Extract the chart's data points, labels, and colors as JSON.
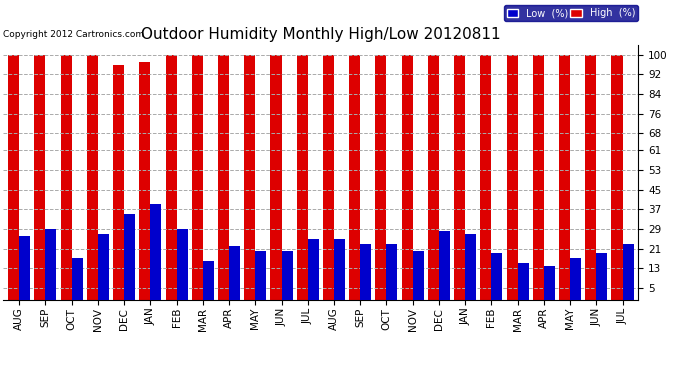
{
  "title": "Outdoor Humidity Monthly High/Low 20120811",
  "copyright": "Copyright 2012 Cartronics.com",
  "months": [
    "AUG",
    "SEP",
    "OCT",
    "NOV",
    "DEC",
    "JAN",
    "FEB",
    "MAR",
    "APR",
    "MAY",
    "JUN",
    "JUL",
    "AUG",
    "SEP",
    "OCT",
    "NOV",
    "DEC",
    "JAN",
    "FEB",
    "MAR",
    "APR",
    "MAY",
    "JUN",
    "JUL"
  ],
  "high": [
    100,
    100,
    100,
    100,
    96,
    97,
    100,
    100,
    100,
    100,
    100,
    100,
    100,
    100,
    100,
    100,
    100,
    100,
    100,
    100,
    100,
    100,
    100,
    100
  ],
  "low": [
    26,
    29,
    17,
    27,
    35,
    39,
    29,
    16,
    22,
    20,
    20,
    25,
    25,
    23,
    23,
    20,
    28,
    27,
    19,
    15,
    14,
    17,
    19,
    23
  ],
  "bar_width": 0.42,
  "high_color": "#dd0000",
  "low_color": "#0000cc",
  "bg_color": "#ffffff",
  "grid_color": "#aaaaaa",
  "yticks": [
    5,
    13,
    21,
    29,
    37,
    45,
    53,
    61,
    68,
    76,
    84,
    92,
    100
  ],
  "ylim": [
    0,
    104
  ],
  "title_fontsize": 11,
  "tick_fontsize": 7.5,
  "legend_low_color": "#0000cc",
  "legend_high_color": "#dd0000"
}
